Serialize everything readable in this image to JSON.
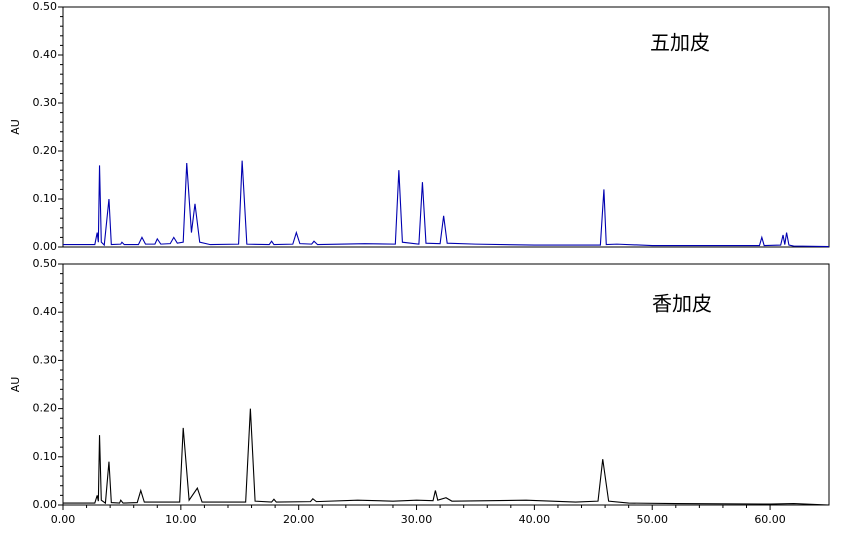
{
  "chart_data": [
    {
      "type": "line",
      "annotation": "五加皮",
      "ylabel": "AU",
      "ylim": [
        0,
        0.5
      ],
      "yticks": [
        {
          "value": 0,
          "label": "0.00"
        },
        {
          "value": 0.1,
          "label": "0.10"
        },
        {
          "value": 0.2,
          "label": "0.20"
        },
        {
          "value": 0.3,
          "label": "0.30"
        },
        {
          "value": 0.4,
          "label": "0.40"
        },
        {
          "value": 0.5,
          "label": "0.50"
        }
      ],
      "xlim": [
        0,
        65
      ],
      "series": [
        {
          "color": "#0000b0",
          "x": [
            0,
            2.7,
            2.9,
            3.0,
            3.1,
            3.25,
            3.5,
            3.9,
            4.1,
            4.9,
            5.0,
            5.2,
            6.4,
            6.7,
            7.0,
            7.8,
            8.0,
            8.3,
            9.1,
            9.4,
            9.7,
            10.2,
            10.5,
            10.9,
            11.2,
            11.6,
            12.5,
            14.9,
            15.2,
            15.6,
            17.5,
            17.7,
            17.9,
            19.5,
            19.8,
            20.1,
            21.1,
            21.3,
            21.6,
            25.6,
            28.2,
            28.5,
            28.8,
            30.2,
            30.5,
            30.8,
            32.0,
            32.3,
            32.6,
            35,
            40,
            45.6,
            45.9,
            46.1,
            47,
            50,
            55,
            59.1,
            59.3,
            59.5,
            60.9,
            61.1,
            61.25,
            61.4,
            61.6,
            62,
            65
          ],
          "values": [
            0.005,
            0.005,
            0.03,
            0.01,
            0.17,
            0.01,
            0.004,
            0.1,
            0.005,
            0.006,
            0.01,
            0.005,
            0.005,
            0.02,
            0.006,
            0.006,
            0.017,
            0.006,
            0.007,
            0.02,
            0.008,
            0.01,
            0.175,
            0.03,
            0.09,
            0.01,
            0.005,
            0.006,
            0.18,
            0.006,
            0.005,
            0.012,
            0.005,
            0.006,
            0.03,
            0.007,
            0.006,
            0.012,
            0.005,
            0.007,
            0.006,
            0.16,
            0.01,
            0.006,
            0.135,
            0.008,
            0.007,
            0.065,
            0.008,
            0.006,
            0.004,
            0.004,
            0.12,
            0.005,
            0.006,
            0.003,
            0.003,
            0.003,
            0.02,
            0.003,
            0.004,
            0.025,
            0.005,
            0.03,
            0.004,
            0.002,
            0.001
          ]
        }
      ]
    },
    {
      "type": "line",
      "annotation": "香加皮",
      "ylabel": "AU",
      "ylim": [
        0,
        0.5
      ],
      "yticks": [
        {
          "value": 0,
          "label": "0.00"
        },
        {
          "value": 0.1,
          "label": "0.10"
        },
        {
          "value": 0.2,
          "label": "0.20"
        },
        {
          "value": 0.3,
          "label": "0.30"
        },
        {
          "value": 0.4,
          "label": "0.40"
        },
        {
          "value": 0.5,
          "label": "0.50"
        }
      ],
      "xlim": [
        0,
        65
      ],
      "xticks": [
        {
          "value": 0,
          "label": "0.00"
        },
        {
          "value": 10,
          "label": "10.00"
        },
        {
          "value": 20,
          "label": "20.00"
        },
        {
          "value": 30,
          "label": "30.00"
        },
        {
          "value": 40,
          "label": "40.00"
        },
        {
          "value": 50,
          "label": "50.00"
        },
        {
          "value": 60,
          "label": "60.00"
        }
      ],
      "series": [
        {
          "color": "#000000",
          "x": [
            0,
            2.7,
            2.9,
            3.0,
            3.1,
            3.25,
            3.6,
            3.9,
            4.1,
            4.8,
            4.9,
            5.1,
            6.3,
            6.6,
            6.9,
            9.9,
            10.2,
            10.7,
            11.4,
            11.8,
            15.5,
            15.9,
            16.3,
            17.7,
            17.9,
            18.1,
            21,
            21.2,
            21.5,
            25,
            28,
            30,
            31.4,
            31.6,
            31.8,
            32.5,
            33,
            39.3,
            43.5,
            45.4,
            45.8,
            46.3,
            48,
            52,
            60,
            62,
            65
          ],
          "values": [
            0.004,
            0.004,
            0.02,
            0.008,
            0.145,
            0.01,
            0.004,
            0.09,
            0.005,
            0.004,
            0.01,
            0.004,
            0.005,
            0.03,
            0.006,
            0.006,
            0.16,
            0.01,
            0.035,
            0.006,
            0.006,
            0.2,
            0.008,
            0.006,
            0.012,
            0.006,
            0.007,
            0.013,
            0.007,
            0.01,
            0.008,
            0.01,
            0.009,
            0.03,
            0.01,
            0.015,
            0.008,
            0.01,
            0.006,
            0.008,
            0.095,
            0.008,
            0.004,
            0.003,
            0.002,
            0.003,
            0
          ]
        }
      ]
    }
  ]
}
